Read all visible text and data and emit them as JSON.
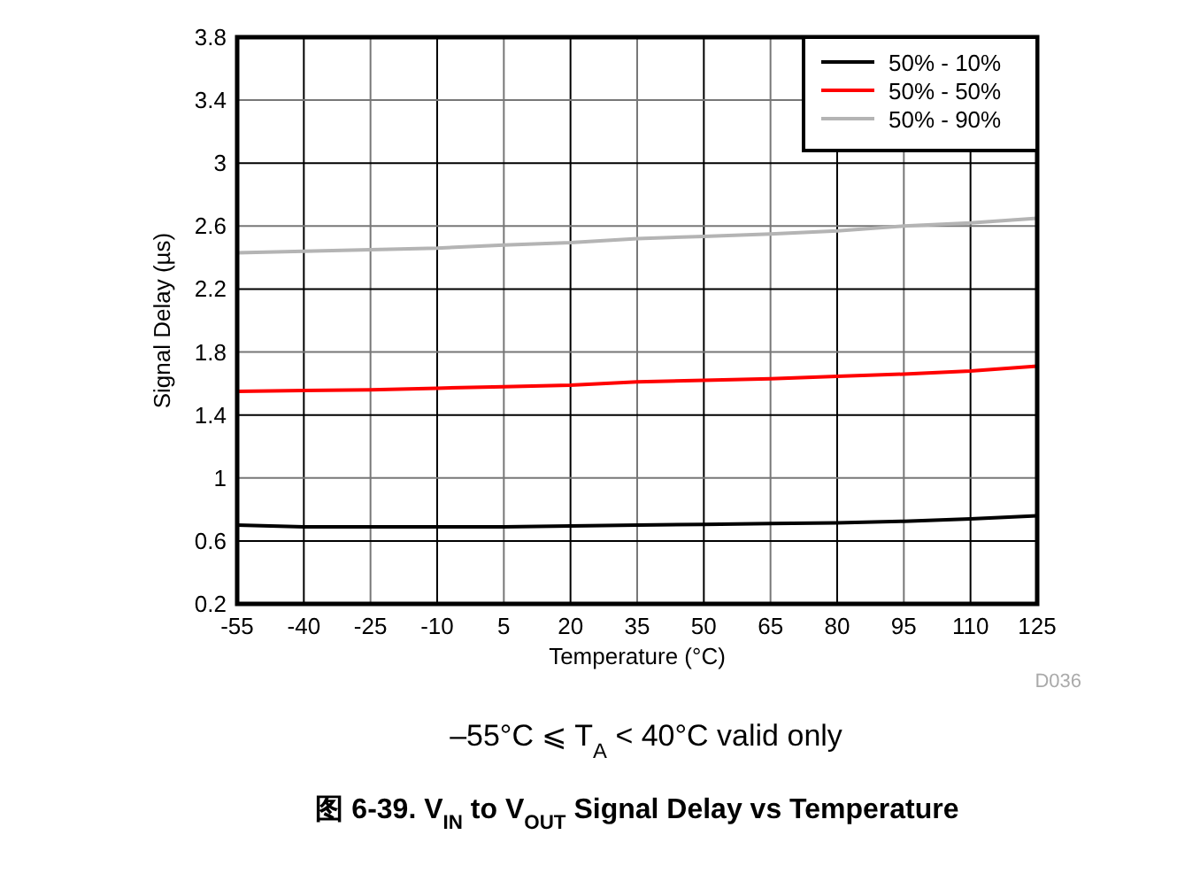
{
  "chart_data": {
    "type": "line",
    "title": "图 6-39. V$_{IN}$ to V$_{OUT}$ Signal Delay vs Temperature",
    "xlabel": "Temperature (°C)",
    "ylabel": "Signal Delay (µs)",
    "x": [
      -55,
      -40,
      -25,
      -10,
      5,
      20,
      35,
      50,
      65,
      80,
      95,
      110,
      125
    ],
    "series": [
      {
        "name": "50% - 10%",
        "color": "#000000",
        "values": [
          0.7,
          0.69,
          0.69,
          0.69,
          0.69,
          0.695,
          0.7,
          0.705,
          0.71,
          0.715,
          0.725,
          0.74,
          0.76
        ]
      },
      {
        "name": "50% - 50%",
        "color": "#ff0000",
        "values": [
          1.55,
          1.555,
          1.56,
          1.57,
          1.58,
          1.59,
          1.61,
          1.62,
          1.63,
          1.645,
          1.66,
          1.68,
          1.71
        ]
      },
      {
        "name": "50% - 90%",
        "color": "#b4b4b4",
        "values": [
          2.43,
          2.44,
          2.45,
          2.46,
          2.48,
          2.495,
          2.52,
          2.535,
          2.55,
          2.57,
          2.6,
          2.62,
          2.65
        ]
      }
    ],
    "xlim": [
      -55,
      125
    ],
    "xticks": [
      -55,
      -40,
      -25,
      -10,
      5,
      20,
      35,
      50,
      65,
      80,
      95,
      110,
      125
    ],
    "ylim": [
      0.2,
      3.8
    ],
    "yticks": [
      0.2,
      0.6,
      1,
      1.4,
      1.8,
      2.2,
      2.6,
      3,
      3.4,
      3.8
    ],
    "grid": true,
    "legend": "top right",
    "line_style": "solid",
    "annotations": [
      "D036",
      "–55°C ⩽ T$_{A}$ < 40°C valid only"
    ]
  }
}
